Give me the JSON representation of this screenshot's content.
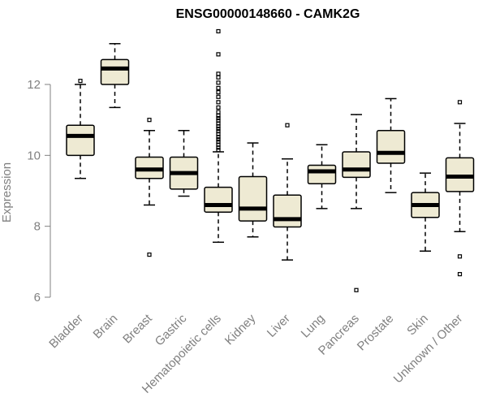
{
  "chart_data": {
    "type": "box",
    "title": "ENSG00000148660 - CAMK2G",
    "xlabel": "",
    "ylabel": "Expression",
    "ylim": [
      6,
      13.7
    ],
    "yticks": [
      6,
      8,
      10,
      12
    ],
    "grid": false,
    "categories": [
      "Bladder",
      "Brain",
      "Breast",
      "Gastric",
      "Hematopoietic cells",
      "Kidney",
      "Liver",
      "Lung",
      "Pancreas",
      "Prostate",
      "Skin",
      "Unknown / Other"
    ],
    "boxes": [
      {
        "category": "Bladder",
        "whisker_low": 9.35,
        "q1": 10.0,
        "median": 10.55,
        "q3": 10.85,
        "whisker_high": 12.0,
        "outliers": [
          12.1
        ]
      },
      {
        "category": "Brain",
        "whisker_low": 11.35,
        "q1": 12.0,
        "median": 12.45,
        "q3": 12.7,
        "whisker_high": 13.15,
        "outliers": []
      },
      {
        "category": "Breast",
        "whisker_low": 8.6,
        "q1": 9.35,
        "median": 9.6,
        "q3": 9.95,
        "whisker_high": 10.7,
        "outliers": [
          11.0,
          7.2
        ]
      },
      {
        "category": "Gastric",
        "whisker_low": 8.85,
        "q1": 9.05,
        "median": 9.5,
        "q3": 9.95,
        "whisker_high": 10.7,
        "outliers": []
      },
      {
        "category": "Hematopoietic cells",
        "whisker_low": 7.55,
        "q1": 8.4,
        "median": 8.6,
        "q3": 9.1,
        "whisker_high": 10.1,
        "outliers": [
          10.15,
          10.22,
          10.3,
          10.38,
          10.45,
          10.52,
          10.6,
          10.68,
          10.75,
          10.82,
          10.9,
          10.98,
          11.05,
          11.12,
          11.22,
          11.35,
          11.5,
          11.65,
          11.78,
          11.9,
          12.05,
          12.2,
          12.3,
          12.85,
          13.5
        ]
      },
      {
        "category": "Kidney",
        "whisker_low": 7.7,
        "q1": 8.15,
        "median": 8.5,
        "q3": 9.4,
        "whisker_high": 10.35,
        "outliers": []
      },
      {
        "category": "Liver",
        "whisker_low": 7.05,
        "q1": 7.98,
        "median": 8.2,
        "q3": 8.88,
        "whisker_high": 9.9,
        "outliers": [
          10.85
        ]
      },
      {
        "category": "Lung",
        "whisker_low": 8.5,
        "q1": 9.2,
        "median": 9.55,
        "q3": 9.72,
        "whisker_high": 10.3,
        "outliers": []
      },
      {
        "category": "Pancreas",
        "whisker_low": 8.5,
        "q1": 9.38,
        "median": 9.6,
        "q3": 10.1,
        "whisker_high": 11.15,
        "outliers": [
          6.2
        ]
      },
      {
        "category": "Prostate",
        "whisker_low": 8.95,
        "q1": 9.78,
        "median": 10.07,
        "q3": 10.7,
        "whisker_high": 11.6,
        "outliers": []
      },
      {
        "category": "Skin",
        "whisker_low": 7.3,
        "q1": 8.25,
        "median": 8.6,
        "q3": 8.95,
        "whisker_high": 9.5,
        "outliers": []
      },
      {
        "category": "Unknown / Other",
        "whisker_low": 7.85,
        "q1": 8.98,
        "median": 9.4,
        "q3": 9.93,
        "whisker_high": 10.9,
        "outliers": [
          11.5,
          7.15,
          6.65
        ]
      }
    ]
  }
}
